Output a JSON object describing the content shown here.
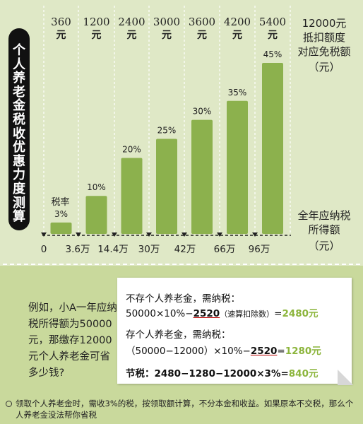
{
  "title": "个人养老金税收优惠力度测算",
  "right_labels": {
    "top": [
      "12000元",
      "抵扣额度",
      "对应免税额",
      "（元）"
    ],
    "bottom": [
      "全年应纳税",
      "所得额",
      "（元）"
    ]
  },
  "bar_top_labels": [
    {
      "amount": "360",
      "unit": "元"
    },
    {
      "amount": "1200",
      "unit": "元"
    },
    {
      "amount": "2400",
      "unit": "元"
    },
    {
      "amount": "3000",
      "unit": "元"
    },
    {
      "amount": "3600",
      "unit": "元"
    },
    {
      "amount": "4200",
      "unit": "元"
    },
    {
      "amount": "5400",
      "unit": "元"
    }
  ],
  "x_ticks": [
    "0",
    "3.6万",
    "14.4万",
    "30万",
    "42万",
    "66万",
    "96万"
  ],
  "first_bar_label": "税率",
  "chart_data": {
    "type": "bar",
    "categories": [
      "0–3.6万",
      "3.6万–14.4万",
      "14.4万–30万",
      "30万–42万",
      "42万–66万",
      "66万–96万",
      "96万以上"
    ],
    "values": [
      3,
      10,
      20,
      25,
      30,
      35,
      45
    ],
    "value_labels": [
      "3%",
      "10%",
      "20%",
      "25%",
      "30%",
      "35%",
      "45%"
    ],
    "exemptions": [
      360,
      1200,
      2400,
      3000,
      3600,
      4200,
      5400
    ],
    "title": "个人养老金税收优惠力度测算",
    "ylim": [
      0,
      45
    ],
    "bar_color": "#8cb14d",
    "grid": false
  },
  "example": {
    "question": "例如，小A一年应纳税所得额为50000元，那缴存12000元个人养老金可省多少钱?",
    "line1_label": "不存个人养老金，需纳税：",
    "line2_a": "50000×10%−",
    "line2_b": "2520",
    "line2_c": "（速算扣除数）",
    "line2_d": "=",
    "line2_e": "2480元",
    "line3_label": "存个人养老金，需纳税：",
    "line4_a": "（50000−12000）×10%−",
    "line4_b": "2520",
    "line4_c": "=",
    "line4_d": "1280元",
    "line5_a": "节税：",
    "line5_b": "2480−1280−12000×3%=",
    "line5_c": "840元"
  },
  "footnote": "领取个人养老金时，需收3%的税，按领取额计算，不分本金和收益。如果原本不交税，那么个人养老金没法帮你省税",
  "colors": {
    "bar": "#8cb14d",
    "panel_top": "#dfe8c6",
    "panel_bottom": "#c9d99c",
    "highlight": "#8cb53c"
  }
}
